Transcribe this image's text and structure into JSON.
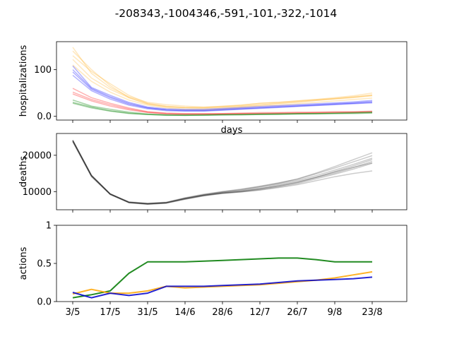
{
  "chart_data": {
    "type": "line",
    "title": "-208343,-1004346,-591,-101,-322,-1014",
    "x_tick_labels": [
      "3/5",
      "17/5",
      "31/5",
      "14/6",
      "28/6",
      "12/7",
      "26/7",
      "9/8",
      "23/8"
    ],
    "panels": [
      {
        "ylabel": "hospitalizations",
        "xlabel": "days",
        "ylim": [
          -8,
          160
        ],
        "yticks": [
          0,
          100
        ],
        "series": [
          {
            "color": "#ffa500",
            "alpha": 0.25,
            "runs": [
              [
                148,
                92,
                62,
                42,
                30,
                25,
                22,
                20,
                21,
                24,
                28,
                30,
                33,
                36,
                40,
                44,
                50
              ],
              [
                130,
                96,
                70,
                45,
                28,
                22,
                19,
                18,
                20,
                22,
                25,
                27,
                30,
                34,
                38,
                41,
                45
              ],
              [
                122,
                82,
                58,
                40,
                26,
                20,
                18,
                17,
                19,
                21,
                24,
                28,
                31,
                34,
                37,
                40,
                44
              ],
              [
                110,
                75,
                52,
                35,
                24,
                18,
                15,
                14,
                16,
                19,
                22,
                24,
                27,
                30,
                33,
                36,
                39
              ],
              [
                140,
                100,
                66,
                40,
                27,
                21,
                19,
                19,
                22,
                24,
                28,
                30,
                33,
                36,
                38,
                42,
                46
              ]
            ]
          },
          {
            "color": "#0000ff",
            "alpha": 0.3,
            "runs": [
              [
                108,
                62,
                45,
                30,
                20,
                16,
                15,
                15,
                17,
                19,
                21,
                23,
                25,
                27,
                29,
                31,
                34
              ],
              [
                95,
                58,
                40,
                26,
                18,
                14,
                12,
                12,
                14,
                16,
                18,
                20,
                22,
                24,
                26,
                28,
                30
              ],
              [
                88,
                55,
                37,
                24,
                16,
                12,
                11,
                11,
                13,
                15,
                17,
                19,
                21,
                23,
                25,
                27,
                29
              ],
              [
                100,
                60,
                42,
                28,
                18,
                14,
                13,
                13,
                15,
                17,
                19,
                21,
                23,
                25,
                27,
                29,
                32
              ]
            ]
          },
          {
            "color": "#ff0000",
            "alpha": 0.3,
            "runs": [
              [
                60,
                40,
                28,
                18,
                10,
                7,
                6,
                6,
                6,
                7,
                8,
                8,
                9,
                9,
                10,
                10,
                11
              ],
              [
                52,
                36,
                25,
                16,
                9,
                6,
                5,
                5,
                5,
                6,
                6,
                7,
                7,
                8,
                8,
                9,
                10
              ],
              [
                48,
                33,
                22,
                14,
                8,
                5,
                4,
                4,
                5,
                5,
                6,
                6,
                7,
                7,
                8,
                8,
                9
              ]
            ]
          },
          {
            "color": "#008000",
            "alpha": 0.35,
            "runs": [
              [
                35,
                22,
                15,
                9,
                5,
                3,
                3,
                3,
                4,
                4,
                5,
                5,
                6,
                6,
                7,
                8,
                9
              ],
              [
                30,
                20,
                12,
                7,
                4,
                3,
                2,
                3,
                3,
                4,
                4,
                5,
                5,
                6,
                6,
                7,
                8
              ],
              [
                28,
                18,
                11,
                6,
                4,
                2,
                2,
                2,
                3,
                3,
                4,
                4,
                5,
                5,
                6,
                6,
                7
              ]
            ]
          }
        ]
      },
      {
        "ylabel": "deaths",
        "ylim": [
          5000,
          26000
        ],
        "yticks": [
          10000,
          20000
        ],
        "series": [
          {
            "color": "#000000",
            "alpha": 0.2,
            "runs": [
              [
                24200,
                14500,
                9400,
                7000,
                6500,
                6800,
                7900,
                8800,
                9500,
                9900,
                10500,
                11300,
                12200,
                13500,
                14800,
                16200,
                17800
              ],
              [
                24000,
                14300,
                9200,
                7000,
                6600,
                6900,
                8000,
                8900,
                9600,
                10100,
                10800,
                11600,
                12500,
                13800,
                15100,
                16600,
                18300
              ],
              [
                23800,
                14200,
                9300,
                7100,
                6700,
                7000,
                8200,
                9100,
                9800,
                10400,
                11200,
                12100,
                13100,
                14400,
                15900,
                17500,
                19200
              ],
              [
                24100,
                14400,
                9400,
                7200,
                6800,
                7100,
                8300,
                9300,
                10000,
                10700,
                11500,
                12400,
                13400,
                14900,
                16500,
                18200,
                19900
              ],
              [
                23900,
                14300,
                9300,
                7000,
                6600,
                6900,
                8100,
                9000,
                9700,
                10200,
                10900,
                11800,
                12800,
                14000,
                15500,
                17100,
                18800
              ],
              [
                24050,
                14450,
                9350,
                7050,
                6650,
                6950,
                8150,
                9150,
                9950,
                10550,
                11350,
                12300,
                13500,
                15100,
                16900,
                18800,
                20700
              ],
              [
                23700,
                14100,
                9200,
                6900,
                6500,
                6800,
                7900,
                8900,
                9500,
                9900,
                10400,
                11100,
                11900,
                13000,
                14100,
                15000,
                15700
              ],
              [
                24150,
                14500,
                9400,
                7100,
                6700,
                7000,
                8100,
                9000,
                9600,
                10000,
                10700,
                11500,
                12500,
                13900,
                15400,
                16700,
                17900
              ]
            ]
          }
        ]
      },
      {
        "ylabel": "actions",
        "ylim": [
          0,
          1
        ],
        "yticks": [
          0.0,
          0.5,
          1.0
        ],
        "series": [
          {
            "color": "#228b22",
            "alpha": 1,
            "runs": [
              [
                0.05,
                0.09,
                0.14,
                0.37,
                0.52,
                0.52,
                0.52,
                0.53,
                0.54,
                0.55,
                0.56,
                0.57,
                0.57,
                0.55,
                0.52,
                0.52,
                0.52
              ]
            ]
          },
          {
            "color": "#ffa500",
            "alpha": 0.85,
            "runs": [
              [
                0.1,
                0.16,
                0.11,
                0.11,
                0.14,
                0.2,
                0.18,
                0.19,
                0.2,
                0.21,
                0.22,
                0.24,
                0.26,
                0.28,
                0.31,
                0.35,
                0.39
              ]
            ]
          },
          {
            "color": "#0000cd",
            "alpha": 0.85,
            "runs": [
              [
                0.12,
                0.05,
                0.11,
                0.08,
                0.11,
                0.2,
                0.2,
                0.2,
                0.21,
                0.22,
                0.23,
                0.25,
                0.27,
                0.28,
                0.29,
                0.3,
                0.32
              ]
            ]
          }
        ]
      }
    ]
  }
}
